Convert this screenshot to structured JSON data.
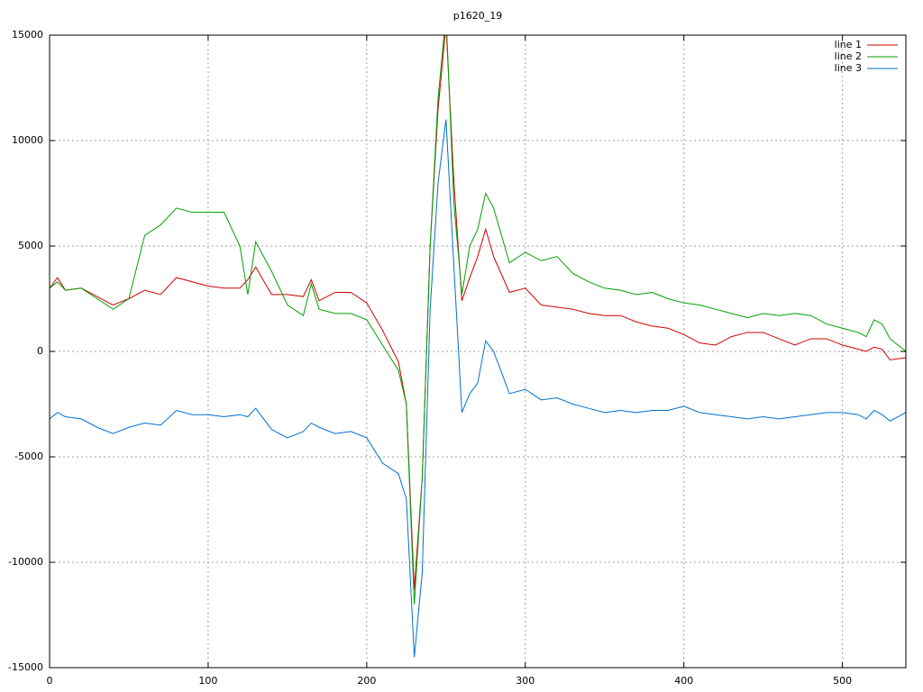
{
  "chart_data": {
    "type": "line",
    "title": "p1620_19",
    "x": [
      0,
      5,
      10,
      20,
      30,
      40,
      50,
      60,
      70,
      80,
      90,
      100,
      110,
      120,
      125,
      130,
      140,
      150,
      160,
      165,
      170,
      180,
      190,
      200,
      210,
      220,
      225,
      230,
      235,
      240,
      245,
      250,
      255,
      260,
      265,
      270,
      275,
      280,
      290,
      300,
      310,
      320,
      330,
      340,
      350,
      360,
      370,
      380,
      390,
      400,
      410,
      420,
      430,
      440,
      450,
      460,
      470,
      480,
      490,
      500,
      510,
      515,
      520,
      525,
      530,
      540
    ],
    "series": [
      {
        "name": "line 1",
        "color": "#d00000",
        "values": [
          3000,
          3500,
          2900,
          3000,
          2600,
          2200,
          2500,
          2900,
          2700,
          3500,
          3300,
          3100,
          3000,
          3000,
          3400,
          4000,
          2700,
          2700,
          2600,
          3400,
          2400,
          2800,
          2800,
          2300,
          1000,
          -500,
          -2500,
          -11300,
          -6000,
          5000,
          11500,
          15500,
          8000,
          2400,
          3500,
          4500,
          5800,
          4500,
          2800,
          3000,
          2200,
          2100,
          2000,
          1800,
          1700,
          1700,
          1400,
          1200,
          1100,
          800,
          400,
          300,
          700,
          900,
          900,
          600,
          300,
          600,
          600,
          300,
          100,
          0,
          200,
          100,
          -400,
          -300
        ]
      },
      {
        "name": "line 2",
        "color": "#00a000",
        "values": [
          3000,
          3300,
          2900,
          3000,
          2500,
          2000,
          2500,
          5500,
          6000,
          6800,
          6600,
          6600,
          6600,
          5000,
          2700,
          5200,
          3800,
          2200,
          1700,
          3200,
          2000,
          1800,
          1800,
          1500,
          300,
          -900,
          -2500,
          -12000,
          -6000,
          5000,
          12000,
          16000,
          7000,
          2700,
          5000,
          5800,
          7500,
          6800,
          4200,
          4700,
          4300,
          4500,
          3700,
          3300,
          3000,
          2900,
          2700,
          2800,
          2500,
          2300,
          2200,
          2000,
          1800,
          1600,
          1800,
          1700,
          1800,
          1700,
          1300,
          1100,
          900,
          700,
          1500,
          1300,
          600,
          0
        ]
      },
      {
        "name": "line 3",
        "color": "#0070d0",
        "values": [
          -3200,
          -2900,
          -3100,
          -3200,
          -3600,
          -3900,
          -3600,
          -3400,
          -3500,
          -2800,
          -3000,
          -3000,
          -3100,
          -3000,
          -3100,
          -2700,
          -3700,
          -4100,
          -3800,
          -3400,
          -3600,
          -3900,
          -3800,
          -4100,
          -5300,
          -5800,
          -7000,
          -14500,
          -10500,
          2000,
          8000,
          11000,
          4000,
          -2900,
          -2000,
          -1500,
          500,
          0,
          -2000,
          -1800,
          -2300,
          -2200,
          -2500,
          -2700,
          -2900,
          -2800,
          -2900,
          -2800,
          -2800,
          -2600,
          -2900,
          -3000,
          -3100,
          -3200,
          -3100,
          -3200,
          -3100,
          -3000,
          -2900,
          -2900,
          -3000,
          -3200,
          -2800,
          -3000,
          -3300,
          -2900
        ]
      }
    ],
    "xlim": [
      0,
      540
    ],
    "xticks": [
      0,
      100,
      200,
      300,
      400,
      500
    ],
    "ylim": [
      -15000,
      15000
    ],
    "yticks": [
      -15000,
      -10000,
      -5000,
      0,
      5000,
      10000,
      15000
    ],
    "grid": true,
    "legend": "top-right"
  }
}
